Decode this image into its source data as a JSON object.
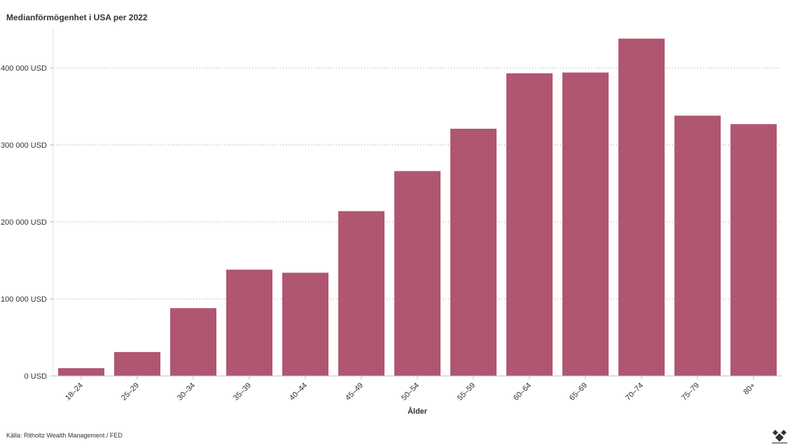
{
  "chart_data": {
    "type": "bar",
    "title": "Medianförmögenhet i USA per 2022",
    "xlabel": "Ålder",
    "ylabel": "",
    "categories": [
      "18–24",
      "25–29",
      "30–34",
      "35–39",
      "40–44",
      "45–49",
      "50–54",
      "55–59",
      "60–64",
      "65–69",
      "70–74",
      "75–79",
      "80+"
    ],
    "values": [
      10000,
      31000,
      88000,
      138000,
      134000,
      214000,
      266000,
      321000,
      393000,
      394000,
      438000,
      338000,
      327000
    ],
    "ylim": [
      0,
      440000
    ],
    "yticks": [
      0,
      100000,
      200000,
      300000,
      400000
    ],
    "ytick_labels": [
      "0 USD",
      "100 000 USD",
      "200 000 USD",
      "300 000 USD",
      "400 000 USD"
    ],
    "grid": true,
    "bar_color": "#b05670"
  },
  "source": "Källa: Ritholtz Wealth Management / FED"
}
